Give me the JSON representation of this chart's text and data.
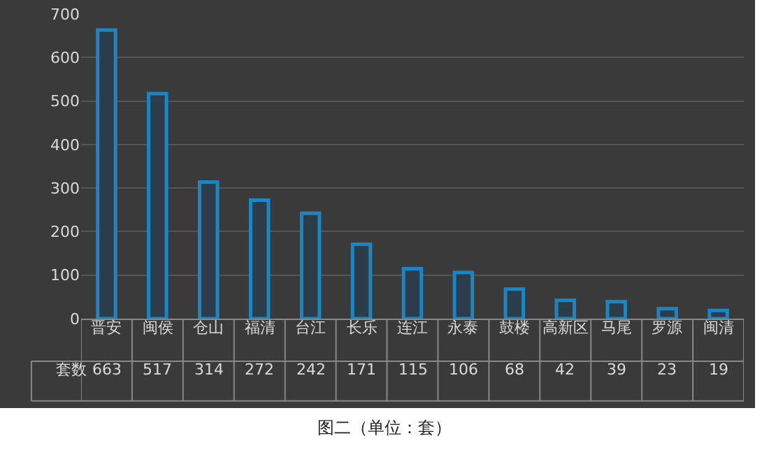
{
  "chart_data": {
    "type": "bar",
    "categories": [
      "晋安",
      "闽侯",
      "仓山",
      "福清",
      "台江",
      "长乐",
      "连江",
      "永泰",
      "鼓楼",
      "高新区",
      "马尾",
      "罗源",
      "闽清"
    ],
    "series": [
      {
        "name": "套数",
        "color": "#1b86c4",
        "values": [
          663,
          517,
          314,
          272,
          242,
          171,
          115,
          106,
          68,
          42,
          39,
          23,
          19
        ]
      }
    ],
    "ylim": [
      0,
      700
    ],
    "yticks": [
      0,
      100,
      200,
      300,
      400,
      500,
      600,
      700
    ],
    "grid": "y",
    "legend": false,
    "data_labels": true,
    "annotations": [
      "图二（单位：套）"
    ]
  }
}
